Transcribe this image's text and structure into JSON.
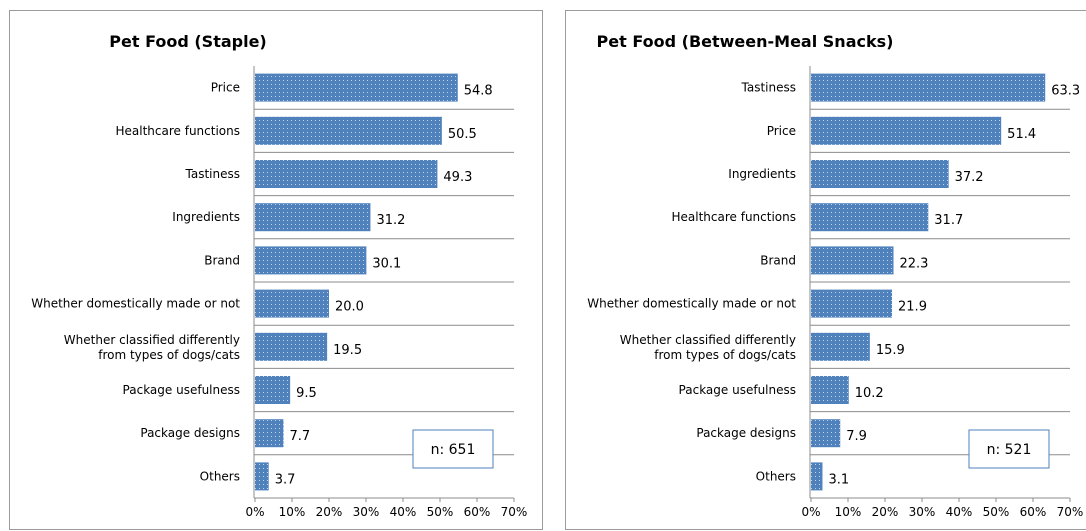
{
  "chart_data": [
    {
      "type": "bar",
      "orientation": "horizontal",
      "title": "Pet Food (Staple)",
      "categories": [
        "Price",
        "Healthcare functions",
        "Tastiness",
        "Ingredients",
        "Brand",
        "Whether domestically made or not",
        "Whether classified differently from types of dogs/cats",
        "Package usefulness",
        "Package designs",
        "Others"
      ],
      "values": [
        54.8,
        50.5,
        49.3,
        31.2,
        30.1,
        20.0,
        19.5,
        9.5,
        7.7,
        3.7
      ],
      "value_labels": [
        "54.8",
        "50.5",
        "49.3",
        "31.2",
        "30.1",
        "20.0",
        "19.5",
        "9.5",
        "7.7",
        "3.7"
      ],
      "xlim": [
        0,
        70
      ],
      "x_ticks": [
        "0%",
        "10%",
        "20%",
        "30%",
        "40%",
        "50%",
        "60%",
        "70%"
      ],
      "gridlines": "horizontal separators between categories",
      "legend": "none",
      "annotation": "n: 651",
      "bar_color": "#4f81bd"
    },
    {
      "type": "bar",
      "orientation": "horizontal",
      "title": "Pet Food (Between-Meal Snacks)",
      "categories": [
        "Tastiness",
        "Price",
        "Ingredients",
        "Healthcare functions",
        "Brand",
        "Whether domestically made or not",
        "Whether classified differently from types of dogs/cats",
        "Package usefulness",
        "Package designs",
        "Others"
      ],
      "values": [
        63.3,
        51.4,
        37.2,
        31.7,
        22.3,
        21.9,
        15.9,
        10.2,
        7.9,
        3.1
      ],
      "value_labels": [
        "63.3",
        "51.4",
        "37.2",
        "31.7",
        "22.3",
        "21.9",
        "15.9",
        "10.2",
        "7.9",
        "3.1"
      ],
      "xlim": [
        0,
        70
      ],
      "x_ticks": [
        "0%",
        "10%",
        "20%",
        "30%",
        "40%",
        "50%",
        "60%",
        "70%"
      ],
      "gridlines": "horizontal separators between categories",
      "legend": "none",
      "annotation": "n: 521",
      "bar_color": "#4f81bd"
    }
  ]
}
